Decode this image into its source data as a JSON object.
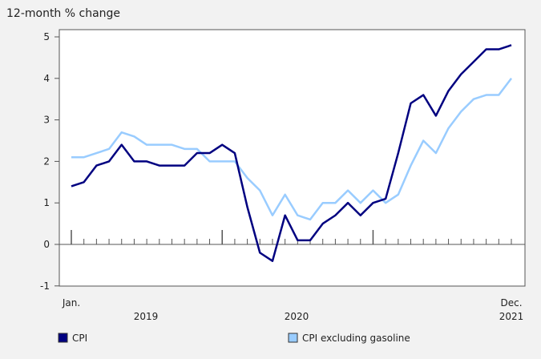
{
  "chart_data": {
    "type": "line",
    "title": "",
    "ylabel": "12-month % change",
    "xlabel": "",
    "ylim": [
      -1,
      5
    ],
    "yticks": [
      -1,
      0,
      1,
      2,
      3,
      4,
      5
    ],
    "x_start_label": "Jan.",
    "x_end_label": "Dec.",
    "year_labels": [
      "2019",
      "2020",
      "2021"
    ],
    "x_range": "Jan. 2019 to Dec. 2021 (monthly)",
    "grid": false,
    "legend_position": "bottom",
    "series": [
      {
        "name": "CPI",
        "color": "#000080",
        "values": [
          1.4,
          1.5,
          1.9,
          2.0,
          2.4,
          2.0,
          2.0,
          1.9,
          1.9,
          1.9,
          2.2,
          2.2,
          2.4,
          2.2,
          0.9,
          -0.2,
          -0.4,
          0.7,
          0.1,
          0.1,
          0.5,
          0.7,
          1.0,
          0.7,
          1.0,
          1.1,
          2.2,
          3.4,
          3.6,
          3.1,
          3.7,
          4.1,
          4.4,
          4.7,
          4.7,
          4.8
        ]
      },
      {
        "name": "CPI excluding gasoline",
        "color": "#99ccff",
        "values": [
          2.1,
          2.1,
          2.2,
          2.3,
          2.7,
          2.6,
          2.4,
          2.4,
          2.4,
          2.3,
          2.3,
          2.0,
          2.0,
          2.0,
          1.6,
          1.3,
          0.7,
          1.2,
          0.7,
          0.6,
          1.0,
          1.0,
          1.3,
          1.0,
          1.3,
          1.0,
          1.2,
          1.9,
          2.5,
          2.2,
          2.8,
          3.2,
          3.5,
          3.6,
          3.6,
          4.0
        ]
      }
    ]
  }
}
